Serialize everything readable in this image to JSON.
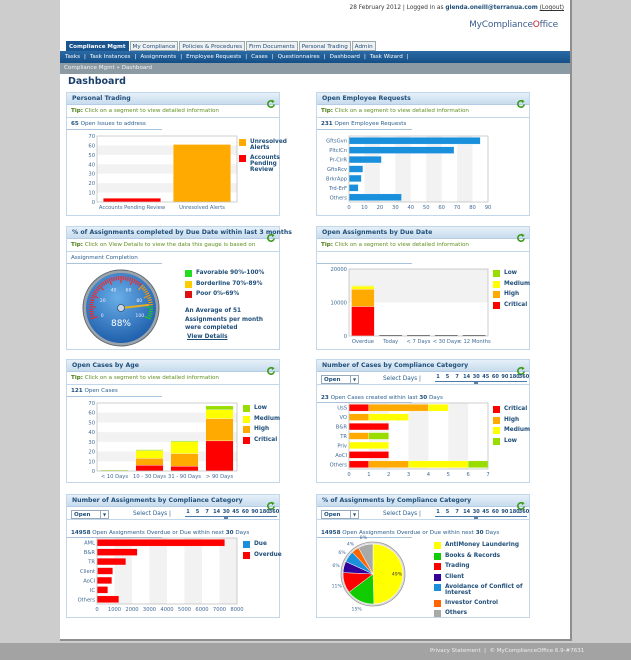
{
  "header": {
    "date": "28 February 2012",
    "logged_in_prefix": "| Logged in as",
    "user": "glenda.oneill@terranua.com",
    "logout": "(Logout)",
    "logo_main": "MyCompliance",
    "logo_o": "O",
    "logo_end": "ffice"
  },
  "tabs": [
    "Compliance Mgmt",
    "My Compliance",
    "Policies & Procedures",
    "Firm Documents",
    "Personal Trading",
    "Admin"
  ],
  "subnav": [
    "Tasks",
    "Task Instances",
    "Assignments",
    "Employee Requests",
    "Cases",
    "Questionnaires",
    "Dashboard",
    "Task Wizard"
  ],
  "breadcrumb": "Compliance Mgmt »  Dashboard",
  "page_title": "Dashboard",
  "days_label": "Select Days",
  "days_options": [
    "1",
    "5",
    "7",
    "14",
    "30",
    "45",
    "60",
    "90",
    "180",
    "360"
  ],
  "days_selected": "30",
  "panels": [
    {
      "title": "Personal Trading",
      "tip_label": "Tip:",
      "tip_text": "Click on a segment to view detailed information",
      "count": "65",
      "summary": "Open Issues to address"
    },
    {
      "title": "Open Employee Requests",
      "tip_label": "Tip:",
      "tip_text": "Click on a segment to view detailed information",
      "count": "231",
      "summary": "Open Employee Requests"
    },
    {
      "title": "% of Assignments completed by Due Date within last 3 months",
      "tip_label": "Tip:",
      "tip_text": "Click on View Details to view the data this gauge is based on",
      "summary": "Assignment Completion",
      "legend": [
        {
          "name": "Favorable 90%-100%",
          "color": "#22dd22"
        },
        {
          "name": "Borderline 70%-89%",
          "color": "#ffcc00"
        },
        {
          "name": "Poor 0%-69%",
          "color": "#dd1111"
        }
      ],
      "average_text": "An Average of 51 Assignments per month were completed",
      "view_details": "View Details"
    },
    {
      "title": "Open Assignments by Due Date",
      "tip_label": "Tip:",
      "tip_text": "Click on a segment to view detailed information"
    },
    {
      "title": "Open Cases by Age",
      "tip_label": "Tip:",
      "tip_text": "Click on a segment to view detailed information",
      "count": "121",
      "summary": "Open Cases"
    },
    {
      "title": "Number of Cases by Compliance Category",
      "filter": "Open",
      "count": "23",
      "summary": "Open Cases created within last",
      "days": "30",
      "summary_end": "Days"
    },
    {
      "title": "Number of Assignments by Compliance Category",
      "filter": "Open",
      "count": "14958",
      "summary": "Open Assignments Overdue or Due within next",
      "days": "30",
      "summary_end": "Days"
    },
    {
      "title": "% of Assignments by Compliance Category",
      "filter": "Open",
      "count": "14958",
      "summary": "Open Assignments Overdue or Due within next",
      "days": "30",
      "summary_end": "Days"
    }
  ],
  "chart_data": [
    {
      "type": "bar",
      "title": "Personal Trading",
      "categories": [
        "Accounts Pending Review",
        "Unresolved Alerts"
      ],
      "series": [
        {
          "name": "Accounts Pending Review",
          "color": "#ff0000",
          "values": [
            4,
            0
          ]
        },
        {
          "name": "Unresolved Alerts",
          "color": "#ffaa00",
          "values": [
            0,
            61
          ]
        }
      ],
      "legend_order": [
        "Unresolved Alerts",
        "Accounts Pending Review"
      ],
      "ylim": [
        0,
        70
      ],
      "yticks": [
        0,
        10,
        20,
        30,
        40,
        50,
        60,
        70
      ]
    },
    {
      "type": "bar",
      "orientation": "horizontal",
      "title": "Open Employee Requests",
      "categories": [
        "GftsGvn",
        "PltclCn",
        "Pr-ClrR",
        "GftsRcv",
        "BrkrApp",
        "Trd-ErF",
        "Others"
      ],
      "series": [
        {
          "name": "Requests",
          "color": "#1a8fdc",
          "values": [
            85,
            68,
            21,
            9,
            8,
            6,
            34
          ]
        }
      ],
      "xlim": [
        0,
        90
      ],
      "xticks": [
        0,
        10,
        20,
        30,
        40,
        50,
        60,
        70,
        80,
        90
      ]
    },
    {
      "type": "gauge",
      "title": "Assignment Completion",
      "value": 88,
      "value_label": "88%",
      "min": 0,
      "max": 100,
      "ticks": [
        "0",
        "20",
        "40",
        "60",
        "80",
        "100"
      ]
    },
    {
      "type": "bar",
      "stacked": true,
      "title": "Open Assignments by Due Date",
      "categories": [
        "Overdue",
        "Today",
        "< 7 Days",
        "< 30 Days",
        "< 12 Months"
      ],
      "series": [
        {
          "name": "Critical",
          "color": "#ff0000",
          "values": [
            8800,
            0,
            0,
            0,
            0
          ]
        },
        {
          "name": "High",
          "color": "#ffaa00",
          "values": [
            5200,
            0,
            0,
            0,
            0
          ]
        },
        {
          "name": "Medium",
          "color": "#ffff00",
          "values": [
            900,
            0,
            0,
            0,
            0
          ]
        },
        {
          "name": "Low",
          "color": "#99dd00",
          "values": [
            150,
            0,
            0,
            0,
            0
          ]
        }
      ],
      "ylim": [
        0,
        20000
      ],
      "yticks": [
        0,
        10000,
        20000
      ]
    },
    {
      "type": "bar",
      "stacked": true,
      "title": "Open Cases by Age",
      "categories": [
        "< 10 Days",
        "10 - 30 Days",
        "31 - 90 Days",
        "> 90 Days"
      ],
      "series": [
        {
          "name": "Critical",
          "color": "#ff0000",
          "values": [
            0,
            6,
            5,
            31
          ]
        },
        {
          "name": "High",
          "color": "#ffaa00",
          "values": [
            0,
            7,
            13,
            23
          ]
        },
        {
          "name": "Medium",
          "color": "#ffff00",
          "values": [
            0,
            8,
            12,
            9
          ]
        },
        {
          "name": "Low",
          "color": "#99dd00",
          "values": [
            1,
            1,
            1,
            4
          ]
        }
      ],
      "ylim": [
        0,
        70
      ],
      "yticks": [
        0,
        10,
        20,
        30,
        40,
        50,
        60,
        70
      ]
    },
    {
      "type": "bar",
      "orientation": "horizontal",
      "stacked": true,
      "title": "Number of Cases by Compliance Category",
      "categories": [
        "UsS",
        "VO",
        "B&R",
        "TR",
        "Priv",
        "AoCI",
        "Others"
      ],
      "series": [
        {
          "name": "Critical",
          "color": "#ff0000",
          "values": [
            1,
            0,
            2,
            0,
            0,
            2,
            1
          ]
        },
        {
          "name": "High",
          "color": "#ffaa00",
          "values": [
            3,
            1,
            0,
            1,
            0,
            0,
            2
          ]
        },
        {
          "name": "Medium",
          "color": "#ffff00",
          "values": [
            1,
            2,
            0,
            0,
            2,
            0,
            3
          ]
        },
        {
          "name": "Low",
          "color": "#99dd00",
          "values": [
            0,
            0,
            0,
            1,
            0,
            0,
            1
          ]
        }
      ],
      "legend_order": [
        "Critical",
        "High",
        "Medium",
        "Low"
      ],
      "xlim": [
        0,
        7
      ],
      "xticks": [
        0,
        1,
        2,
        3,
        4,
        5,
        6,
        7
      ]
    },
    {
      "type": "bar",
      "orientation": "horizontal",
      "stacked": true,
      "title": "Number of Assignments by Compliance Category",
      "categories": [
        "AML",
        "B&R",
        "TR",
        "Client",
        "AoCI",
        "IC",
        "Others"
      ],
      "series": [
        {
          "name": "Due",
          "color": "#1a8fdc",
          "values": [
            0,
            0,
            0,
            30,
            0,
            0,
            0
          ]
        },
        {
          "name": "Overdue",
          "color": "#ff0000",
          "values": [
            7300,
            2300,
            1650,
            870,
            850,
            620,
            1250
          ]
        }
      ],
      "legend_order": [
        "Due",
        "Overdue"
      ],
      "xlim": [
        0,
        8000
      ],
      "xticks": [
        0,
        1000,
        2000,
        3000,
        4000,
        5000,
        6000,
        7000,
        8000
      ]
    },
    {
      "type": "pie",
      "title": "% of Assignments by Compliance Category",
      "slices": [
        {
          "name": "AntiMoney Laundering",
          "color": "#ffff00",
          "value": 49,
          "label": "49%"
        },
        {
          "name": "Books & Records",
          "color": "#11cc00",
          "value": 15,
          "label": "15%"
        },
        {
          "name": "Trading",
          "color": "#ff0000",
          "value": 11,
          "label": "11%"
        },
        {
          "name": "Client",
          "color": "#330099",
          "value": 6,
          "label": "6%"
        },
        {
          "name": "Avoidance of Conflict of Interest",
          "color": "#1a8fdc",
          "value": 6,
          "label": "6%"
        },
        {
          "name": "Investor Control",
          "color": "#ff6600",
          "value": 4,
          "label": "4%"
        },
        {
          "name": "Others",
          "color": "#a8aaa8",
          "value": 8,
          "label": "8%"
        }
      ]
    }
  ],
  "footer": {
    "privacy": "Privacy Statement",
    "sep": "|",
    "copyright": "© MyComplianceOffice 6.9-#7631"
  }
}
